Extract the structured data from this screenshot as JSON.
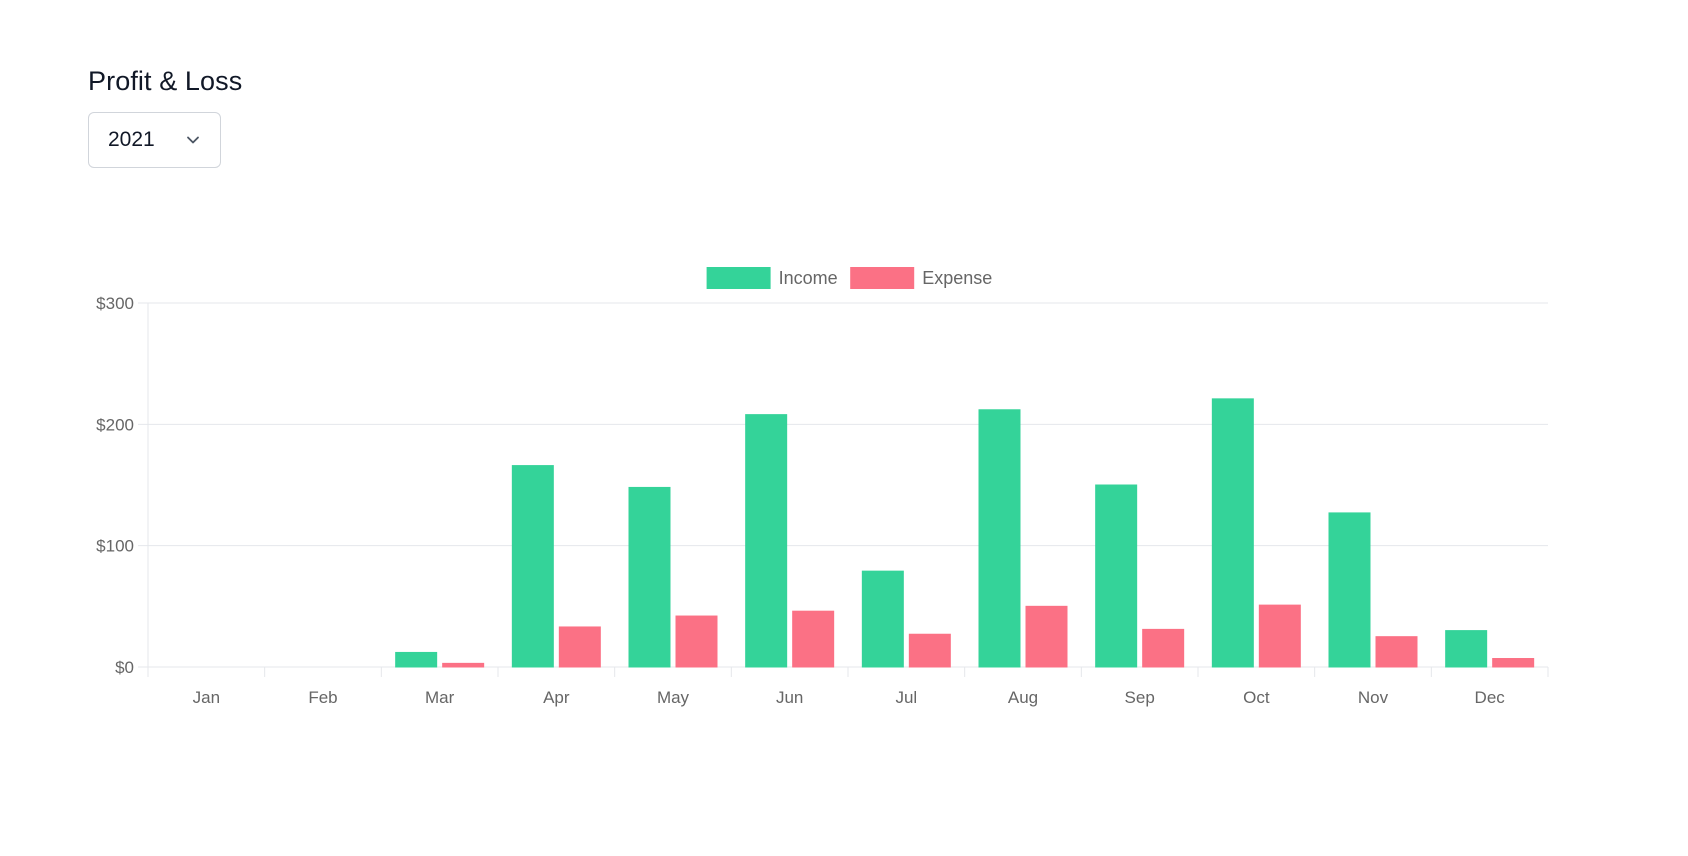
{
  "header": {
    "title": "Profit & Loss"
  },
  "year_select": {
    "value": "2021"
  },
  "colors": {
    "income": "#34d399",
    "expense": "#fb7185",
    "grid": "#e5e7eb",
    "axis_text": "#666666"
  },
  "chart_data": {
    "type": "bar",
    "categories": [
      "Jan",
      "Feb",
      "Mar",
      "Apr",
      "May",
      "Jun",
      "Jul",
      "Aug",
      "Sep",
      "Oct",
      "Nov",
      "Dec"
    ],
    "series": [
      {
        "name": "Income",
        "color": "#34d399",
        "values": [
          0,
          0,
          12,
          166,
          148,
          208,
          79,
          212,
          150,
          221,
          127,
          30
        ]
      },
      {
        "name": "Expense",
        "color": "#fb7185",
        "values": [
          0,
          0,
          3,
          33,
          42,
          46,
          27,
          50,
          31,
          51,
          25,
          7
        ]
      }
    ],
    "ylim": [
      0,
      300
    ],
    "yticks": [
      0,
      100,
      200,
      300
    ],
    "ytick_labels": [
      "$0",
      "$100",
      "$200",
      "$300"
    ],
    "grid": true,
    "legend_position": "top-center"
  }
}
